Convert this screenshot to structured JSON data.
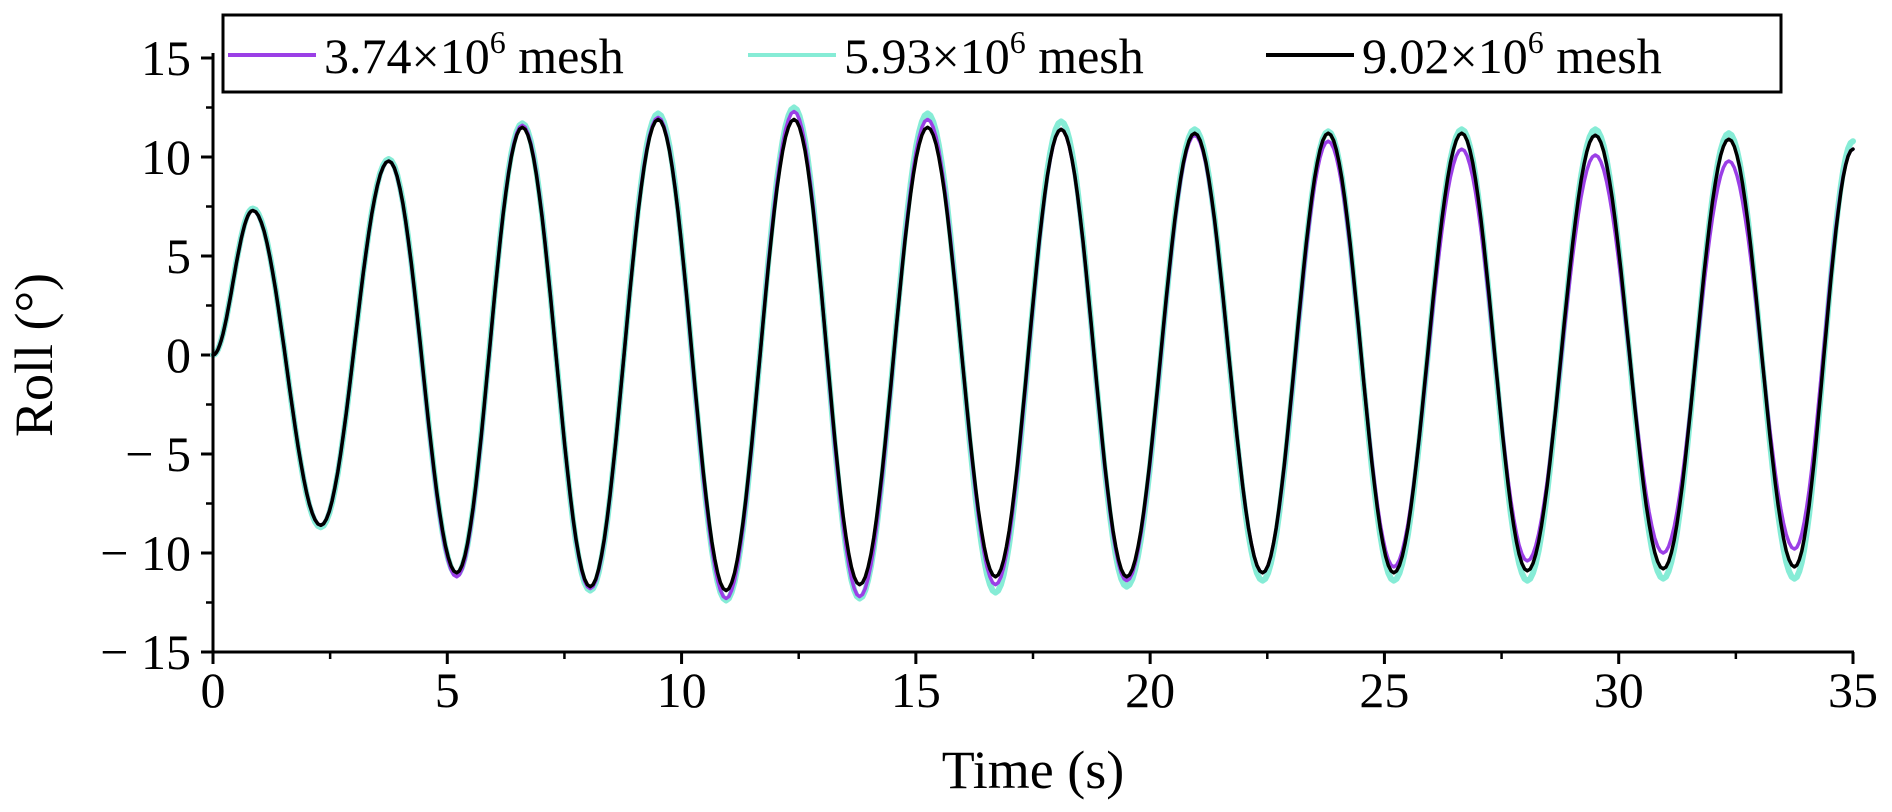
{
  "chart_data": {
    "type": "line",
    "title": "",
    "xlabel": "Time (s)",
    "ylabel": "Roll (°)",
    "xlim": [
      0,
      35
    ],
    "ylim": [
      -15,
      15
    ],
    "xticks": [
      0,
      5,
      10,
      15,
      20,
      25,
      30,
      35
    ],
    "xtick_labels": [
      "0",
      "5",
      "10",
      "15",
      "20",
      "25",
      "30",
      "35"
    ],
    "yticks": [
      15,
      10,
      5,
      0,
      -5,
      -10,
      -15
    ],
    "ytick_labels": [
      "15",
      "10",
      "5",
      "0",
      "− 5",
      "− 10",
      "− 15"
    ],
    "grid": false,
    "legend_position": "top",
    "period": 2.86,
    "series": [
      {
        "name": "3.74×10⁶ mesh",
        "name_parts": {
          "mantissa": "3.74×10",
          "exponent": "6",
          "suffix": " mesh"
        },
        "color": "#9b3fe6",
        "peaks": [
          [
            0,
            0
          ],
          [
            0.85,
            7.3
          ],
          [
            2.3,
            -8.6
          ],
          [
            3.75,
            9.8
          ],
          [
            5.2,
            -11.2
          ],
          [
            6.6,
            11.6
          ],
          [
            8.05,
            -11.8
          ],
          [
            9.5,
            12.0
          ],
          [
            10.95,
            -12.3
          ],
          [
            12.4,
            12.3
          ],
          [
            13.8,
            -12.2
          ],
          [
            15.25,
            11.9
          ],
          [
            16.7,
            -11.6
          ],
          [
            18.1,
            11.4
          ],
          [
            19.5,
            -11.4
          ],
          [
            20.95,
            11.1
          ],
          [
            22.4,
            -11.0
          ],
          [
            23.8,
            10.8
          ],
          [
            25.2,
            -10.7
          ],
          [
            26.65,
            10.4
          ],
          [
            28.05,
            -10.4
          ],
          [
            29.5,
            10.1
          ],
          [
            30.95,
            -10.0
          ],
          [
            32.35,
            9.8
          ],
          [
            33.75,
            -9.8
          ],
          [
            35,
            10.4
          ]
        ]
      },
      {
        "name": "5.93×10⁶ mesh",
        "name_parts": {
          "mantissa": "5.93×10",
          "exponent": "6",
          "suffix": " mesh"
        },
        "color": "#86ecd6",
        "peaks": [
          [
            0,
            0
          ],
          [
            0.85,
            7.4
          ],
          [
            2.3,
            -8.7
          ],
          [
            3.75,
            9.9
          ],
          [
            5.2,
            -11.1
          ],
          [
            6.6,
            11.7
          ],
          [
            8.05,
            -11.9
          ],
          [
            9.5,
            12.2
          ],
          [
            10.95,
            -12.4
          ],
          [
            12.4,
            12.5
          ],
          [
            13.8,
            -12.3
          ],
          [
            15.25,
            12.2
          ],
          [
            16.7,
            -12.0
          ],
          [
            18.1,
            11.8
          ],
          [
            19.5,
            -11.7
          ],
          [
            20.95,
            11.4
          ],
          [
            22.4,
            -11.4
          ],
          [
            23.8,
            11.3
          ],
          [
            25.2,
            -11.4
          ],
          [
            26.65,
            11.4
          ],
          [
            28.05,
            -11.4
          ],
          [
            29.5,
            11.4
          ],
          [
            30.95,
            -11.3
          ],
          [
            32.35,
            11.2
          ],
          [
            33.75,
            -11.3
          ],
          [
            35,
            10.8
          ]
        ]
      },
      {
        "name": "9.02×10⁶ mesh",
        "name_parts": {
          "mantissa": "9.02×10",
          "exponent": "6",
          "suffix": " mesh"
        },
        "color": "#000000",
        "peaks": [
          [
            0,
            0
          ],
          [
            0.85,
            7.3
          ],
          [
            2.3,
            -8.6
          ],
          [
            3.75,
            9.8
          ],
          [
            5.2,
            -11.0
          ],
          [
            6.6,
            11.5
          ],
          [
            8.05,
            -11.7
          ],
          [
            9.5,
            11.9
          ],
          [
            10.95,
            -11.9
          ],
          [
            12.4,
            11.9
          ],
          [
            13.8,
            -11.6
          ],
          [
            15.25,
            11.5
          ],
          [
            16.7,
            -11.2
          ],
          [
            18.1,
            11.4
          ],
          [
            19.5,
            -11.2
          ],
          [
            20.95,
            11.2
          ],
          [
            22.4,
            -11.0
          ],
          [
            23.8,
            11.2
          ],
          [
            25.2,
            -11.0
          ],
          [
            26.65,
            11.2
          ],
          [
            28.05,
            -10.9
          ],
          [
            29.5,
            11.1
          ],
          [
            30.95,
            -10.8
          ],
          [
            32.35,
            10.9
          ],
          [
            33.75,
            -10.7
          ],
          [
            35,
            10.4
          ]
        ]
      }
    ]
  }
}
